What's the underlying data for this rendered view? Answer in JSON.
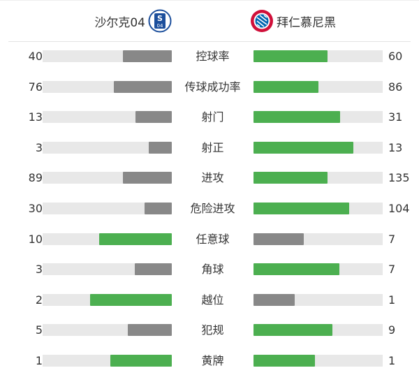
{
  "header": {
    "home_team": "沙尔克04",
    "away_team": "拜仁慕尼黑",
    "home_logo": "schalke-04-crest",
    "away_logo": "bayern-munich-crest"
  },
  "colors": {
    "win": "#4caf50",
    "lose": "#888888",
    "track": "#e8e8e8"
  },
  "stats": [
    {
      "label": "控球率",
      "home": 40,
      "away": 60,
      "home_color": "lose",
      "away_color": "win"
    },
    {
      "label": "传球成功率",
      "home": 76,
      "away": 86,
      "home_color": "lose",
      "away_color": "win"
    },
    {
      "label": "射门",
      "home": 13,
      "away": 31,
      "home_color": "lose",
      "away_color": "win"
    },
    {
      "label": "射正",
      "home": 3,
      "away": 13,
      "home_color": "lose",
      "away_color": "win"
    },
    {
      "label": "进攻",
      "home": 89,
      "away": 135,
      "home_color": "lose",
      "away_color": "win"
    },
    {
      "label": "危险进攻",
      "home": 30,
      "away": 104,
      "home_color": "lose",
      "away_color": "win"
    },
    {
      "label": "任意球",
      "home": 10,
      "away": 7,
      "home_color": "win",
      "away_color": "lose"
    },
    {
      "label": "角球",
      "home": 3,
      "away": 7,
      "home_color": "lose",
      "away_color": "win"
    },
    {
      "label": "越位",
      "home": 2,
      "away": 1,
      "home_color": "win",
      "away_color": "lose"
    },
    {
      "label": "犯规",
      "home": 5,
      "away": 9,
      "home_color": "lose",
      "away_color": "win"
    },
    {
      "label": "黄牌",
      "home": 1,
      "away": 1,
      "home_color": "win",
      "away_color": "win"
    }
  ]
}
